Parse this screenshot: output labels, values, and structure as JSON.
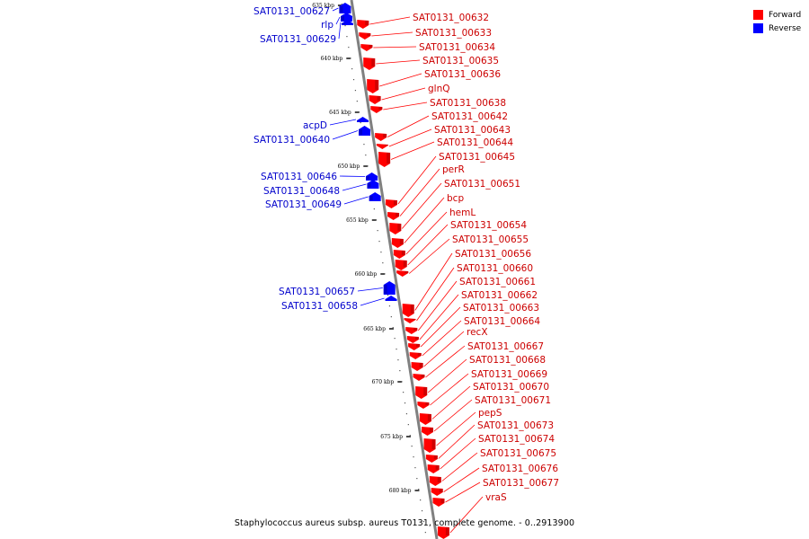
{
  "caption": "Staphylococcus aureus subsp. aureus T0131, complete genome. - 0..2913900",
  "legend": [
    {
      "label": "Forward",
      "color": "#ff0000"
    },
    {
      "label": "Reverse",
      "color": "#0000ff"
    }
  ],
  "colors": {
    "forward": "#ff0000",
    "reverse": "#0000ff",
    "backbone": "#808080",
    "forward_label": "#cc0000",
    "reverse_label": "#0000cc"
  },
  "ticks": [
    {
      "label": "635 kbp"
    },
    {
      "label": "640 kbp"
    },
    {
      "label": "645 kbp"
    },
    {
      "label": "650 kbp"
    },
    {
      "label": "655 kbp"
    },
    {
      "label": "660 kbp"
    },
    {
      "label": "665 kbp"
    },
    {
      "label": "670 kbp"
    },
    {
      "label": "675 kbp"
    },
    {
      "label": "680 kbp"
    }
  ],
  "forward_genes": [
    "SAT0131_00632",
    "SAT0131_00633",
    "SAT0131_00634",
    "SAT0131_00635",
    "SAT0131_00636",
    "glnQ",
    "SAT0131_00638",
    "SAT0131_00642",
    "SAT0131_00643",
    "SAT0131_00644",
    "SAT0131_00645",
    "perR",
    "SAT0131_00651",
    "bcp",
    "hemL",
    "SAT0131_00654",
    "SAT0131_00655",
    "SAT0131_00656",
    "SAT0131_00660",
    "SAT0131_00661",
    "SAT0131_00662",
    "SAT0131_00663",
    "SAT0131_00664",
    "recX",
    "SAT0131_00667",
    "SAT0131_00668",
    "SAT0131_00669",
    "SAT0131_00670",
    "SAT0131_00671",
    "pepS",
    "SAT0131_00673",
    "SAT0131_00674",
    "SAT0131_00675",
    "SAT0131_00676",
    "SAT0131_00677",
    "vraS"
  ],
  "reverse_genes": [
    "SAT0131_00627",
    "rlp",
    "SAT0131_00629",
    "acpD",
    "SAT0131_00640",
    "SAT0131_00646",
    "SAT0131_00648",
    "SAT0131_00649",
    "SAT0131_00657",
    "SAT0131_00658"
  ]
}
